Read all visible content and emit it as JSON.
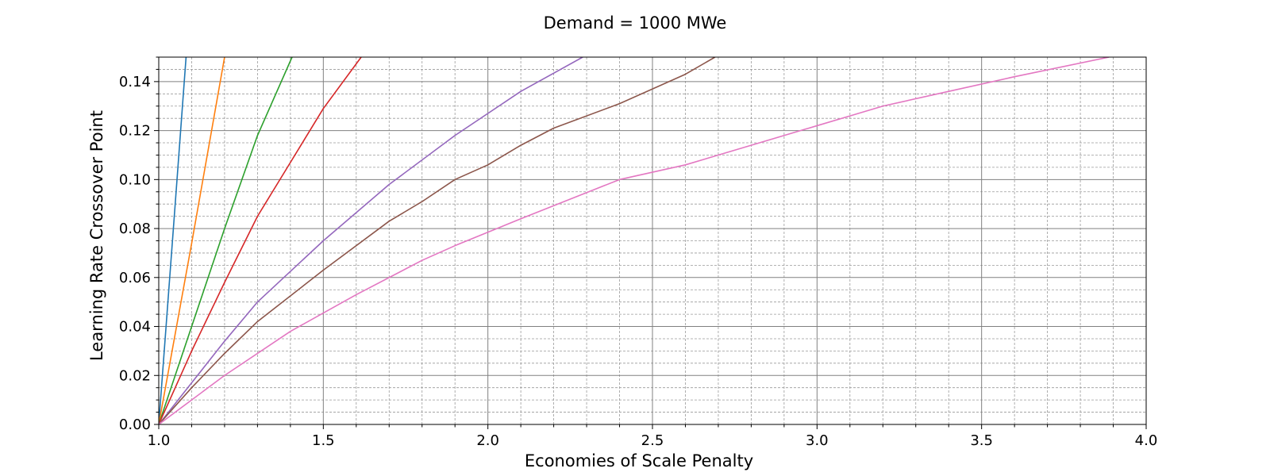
{
  "chart_data": {
    "type": "line",
    "title": "Demand = 1000 MWe",
    "xlabel": "Economies of Scale Penalty",
    "ylabel": "Learning Rate Crossover Point",
    "xlim": [
      1.0,
      4.0
    ],
    "ylim": [
      0.0,
      0.15
    ],
    "x_ticks": [
      1.0,
      1.5,
      2.0,
      2.5,
      3.0,
      3.5,
      4.0
    ],
    "x_tick_labels": [
      "1.0",
      "1.5",
      "2.0",
      "2.5",
      "3.0",
      "3.5",
      "4.0"
    ],
    "y_ticks": [
      0.0,
      0.02,
      0.04,
      0.06,
      0.08,
      0.1,
      0.12,
      0.14
    ],
    "y_tick_labels": [
      "0.00",
      "0.02",
      "0.04",
      "0.06",
      "0.08",
      "0.10",
      "0.12",
      "0.14"
    ],
    "x_minor_step": 0.1,
    "y_minor_step": 0.005,
    "grid": true,
    "legend": "none",
    "series": [
      {
        "color": "#1f77b4",
        "x": [
          1.0,
          1.05,
          1.083
        ],
        "y": [
          0.0,
          0.09,
          0.15
        ]
      },
      {
        "color": "#ff7f0e",
        "x": [
          1.0,
          1.1,
          1.2
        ],
        "y": [
          0.0,
          0.074,
          0.15
        ]
      },
      {
        "color": "#2ca02c",
        "x": [
          1.0,
          1.1,
          1.2,
          1.3,
          1.405
        ],
        "y": [
          0.0,
          0.04,
          0.08,
          0.118,
          0.15
        ]
      },
      {
        "color": "#d62728",
        "x": [
          1.0,
          1.1,
          1.2,
          1.3,
          1.4,
          1.5,
          1.615
        ],
        "y": [
          0.0,
          0.03,
          0.058,
          0.085,
          0.107,
          0.129,
          0.15
        ]
      },
      {
        "color": "#9467bd",
        "x": [
          1.0,
          1.1,
          1.2,
          1.3,
          1.5,
          1.7,
          1.9,
          2.1,
          2.288
        ],
        "y": [
          0.0,
          0.017,
          0.034,
          0.05,
          0.075,
          0.098,
          0.118,
          0.136,
          0.15
        ]
      },
      {
        "color": "#8c564b",
        "x": [
          1.0,
          1.1,
          1.2,
          1.3,
          1.5,
          1.7,
          1.8,
          1.9,
          2.0,
          2.1,
          2.2,
          2.4,
          2.6,
          2.69
        ],
        "y": [
          0.0,
          0.015,
          0.029,
          0.042,
          0.063,
          0.083,
          0.091,
          0.1,
          0.106,
          0.114,
          0.121,
          0.131,
          0.143,
          0.15
        ]
      },
      {
        "color": "#e377c2",
        "x": [
          1.0,
          1.2,
          1.4,
          1.6,
          1.8,
          1.9,
          2.1,
          2.4,
          2.6,
          2.9,
          3.0,
          3.1,
          3.2,
          3.4,
          3.6,
          3.887
        ],
        "y": [
          0.0,
          0.02,
          0.038,
          0.053,
          0.067,
          0.073,
          0.084,
          0.1,
          0.106,
          0.118,
          0.122,
          0.126,
          0.13,
          0.136,
          0.142,
          0.15
        ]
      }
    ]
  }
}
